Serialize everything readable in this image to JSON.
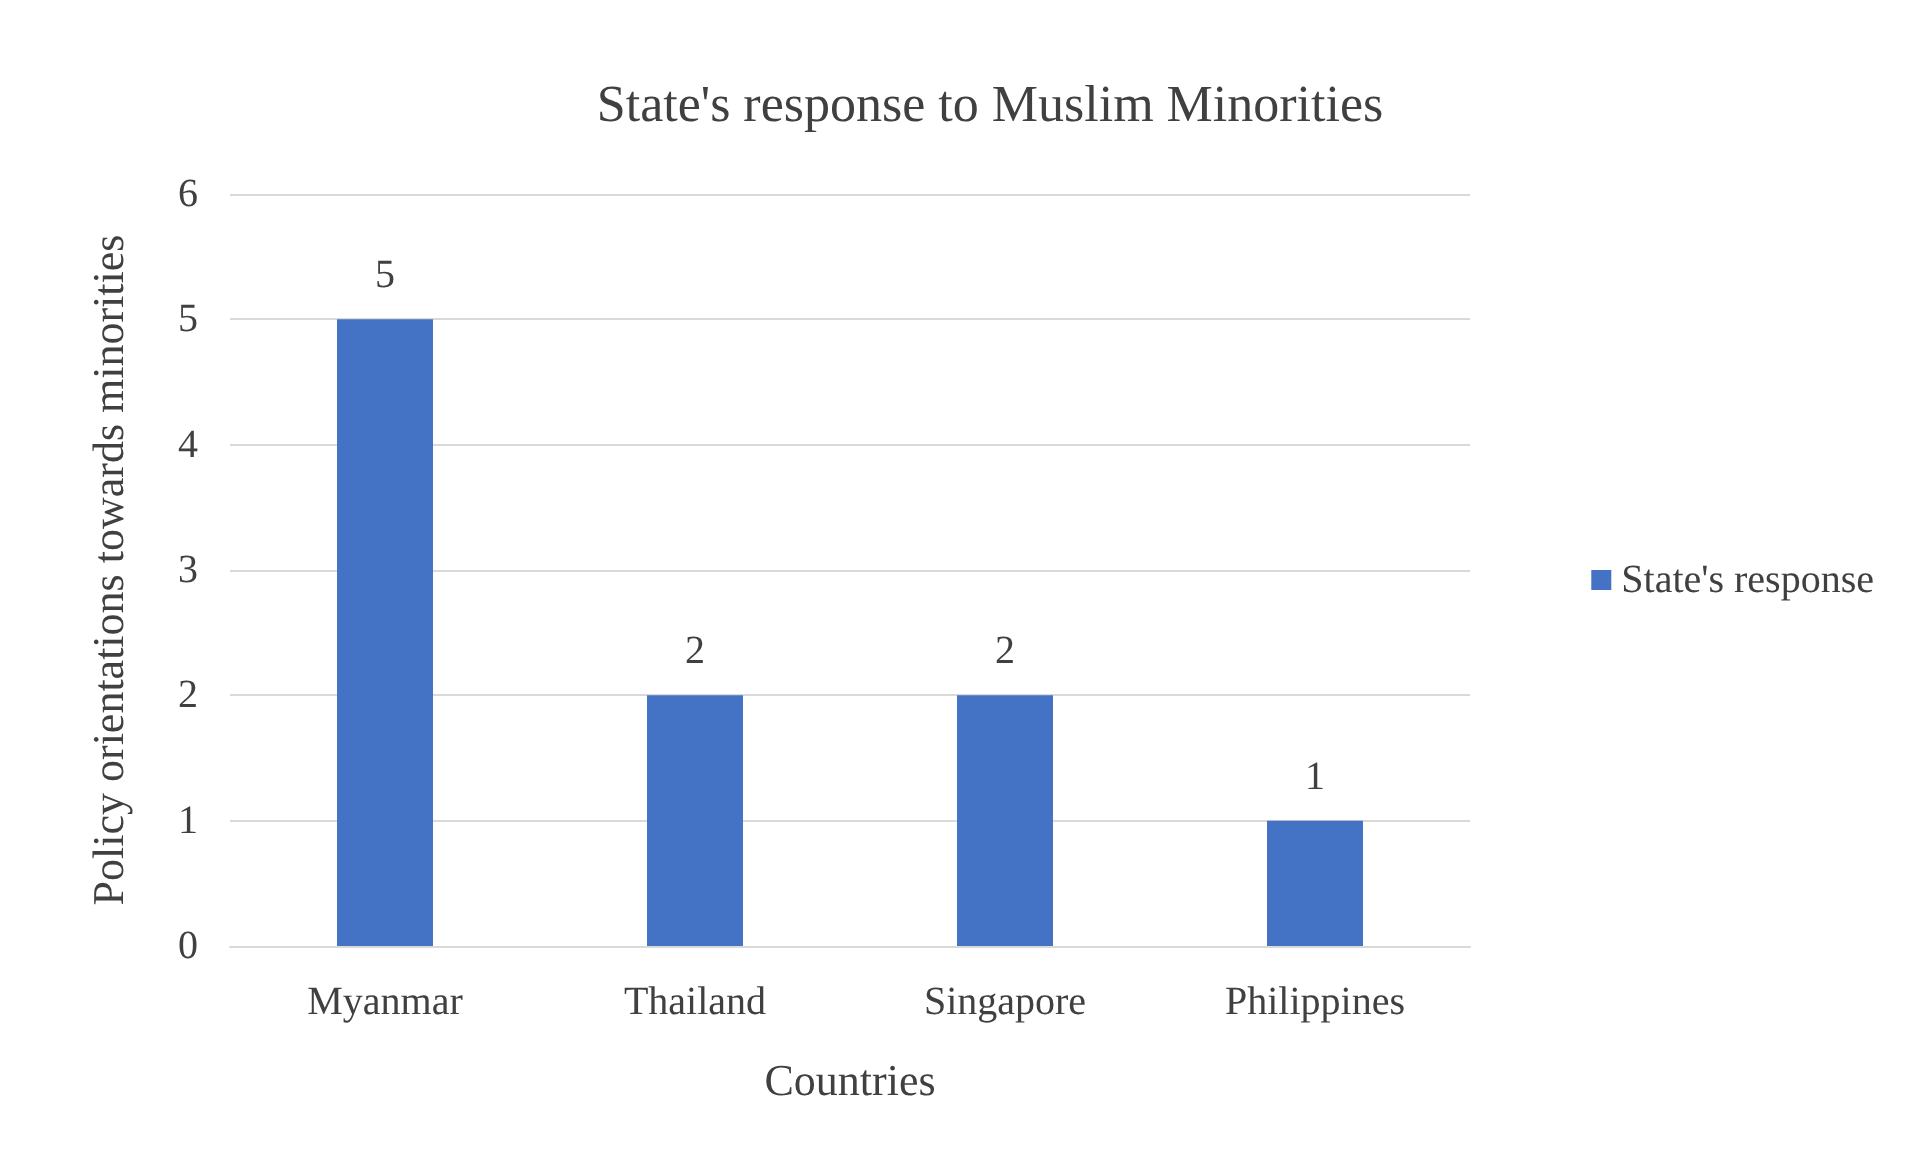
{
  "chart_data": {
    "type": "bar",
    "title": "State's response to Muslim Minorities",
    "xlabel": "Countries",
    "ylabel": "Policy orientations towards minorities",
    "categories": [
      "Myanmar",
      "Thailand",
      "Singapore",
      "Philippines"
    ],
    "series": [
      {
        "name": "State's response",
        "color": "#4472c4",
        "values": [
          5,
          2,
          2,
          1
        ]
      }
    ],
    "ylim": [
      0,
      6
    ],
    "yticks": [
      0,
      1,
      2,
      3,
      4,
      5,
      6
    ],
    "grid": "y",
    "legend": "right",
    "data_labels": true
  }
}
